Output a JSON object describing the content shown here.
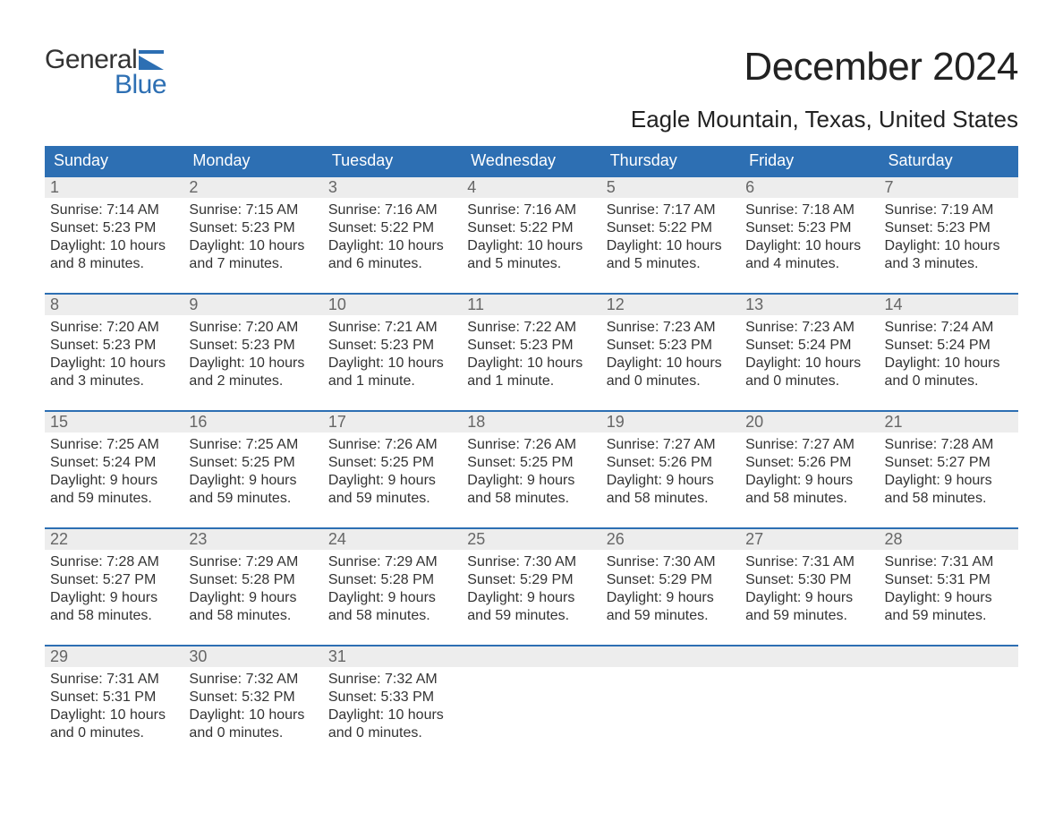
{
  "logo": {
    "top": "General",
    "bottom": "Blue",
    "icon_color": "#2d6fb3"
  },
  "header": {
    "month_title": "December 2024",
    "location": "Eagle Mountain, Texas, United States"
  },
  "calendar": {
    "header_bg": "#2d6fb3",
    "header_fg": "#ffffff",
    "week_border_color": "#2d6fb3",
    "daynum_bg": "#ededed",
    "daynum_fg": "#666666",
    "body_fg": "#333333",
    "background": "#ffffff",
    "font_family": "Arial",
    "day_names": [
      "Sunday",
      "Monday",
      "Tuesday",
      "Wednesday",
      "Thursday",
      "Friday",
      "Saturday"
    ],
    "weeks": [
      [
        {
          "n": "1",
          "sr": "Sunrise: 7:14 AM",
          "ss": "Sunset: 5:23 PM",
          "d1": "Daylight: 10 hours",
          "d2": "and 8 minutes."
        },
        {
          "n": "2",
          "sr": "Sunrise: 7:15 AM",
          "ss": "Sunset: 5:23 PM",
          "d1": "Daylight: 10 hours",
          "d2": "and 7 minutes."
        },
        {
          "n": "3",
          "sr": "Sunrise: 7:16 AM",
          "ss": "Sunset: 5:22 PM",
          "d1": "Daylight: 10 hours",
          "d2": "and 6 minutes."
        },
        {
          "n": "4",
          "sr": "Sunrise: 7:16 AM",
          "ss": "Sunset: 5:22 PM",
          "d1": "Daylight: 10 hours",
          "d2": "and 5 minutes."
        },
        {
          "n": "5",
          "sr": "Sunrise: 7:17 AM",
          "ss": "Sunset: 5:22 PM",
          "d1": "Daylight: 10 hours",
          "d2": "and 5 minutes."
        },
        {
          "n": "6",
          "sr": "Sunrise: 7:18 AM",
          "ss": "Sunset: 5:23 PM",
          "d1": "Daylight: 10 hours",
          "d2": "and 4 minutes."
        },
        {
          "n": "7",
          "sr": "Sunrise: 7:19 AM",
          "ss": "Sunset: 5:23 PM",
          "d1": "Daylight: 10 hours",
          "d2": "and 3 minutes."
        }
      ],
      [
        {
          "n": "8",
          "sr": "Sunrise: 7:20 AM",
          "ss": "Sunset: 5:23 PM",
          "d1": "Daylight: 10 hours",
          "d2": "and 3 minutes."
        },
        {
          "n": "9",
          "sr": "Sunrise: 7:20 AM",
          "ss": "Sunset: 5:23 PM",
          "d1": "Daylight: 10 hours",
          "d2": "and 2 minutes."
        },
        {
          "n": "10",
          "sr": "Sunrise: 7:21 AM",
          "ss": "Sunset: 5:23 PM",
          "d1": "Daylight: 10 hours",
          "d2": "and 1 minute."
        },
        {
          "n": "11",
          "sr": "Sunrise: 7:22 AM",
          "ss": "Sunset: 5:23 PM",
          "d1": "Daylight: 10 hours",
          "d2": "and 1 minute."
        },
        {
          "n": "12",
          "sr": "Sunrise: 7:23 AM",
          "ss": "Sunset: 5:23 PM",
          "d1": "Daylight: 10 hours",
          "d2": "and 0 minutes."
        },
        {
          "n": "13",
          "sr": "Sunrise: 7:23 AM",
          "ss": "Sunset: 5:24 PM",
          "d1": "Daylight: 10 hours",
          "d2": "and 0 minutes."
        },
        {
          "n": "14",
          "sr": "Sunrise: 7:24 AM",
          "ss": "Sunset: 5:24 PM",
          "d1": "Daylight: 10 hours",
          "d2": "and 0 minutes."
        }
      ],
      [
        {
          "n": "15",
          "sr": "Sunrise: 7:25 AM",
          "ss": "Sunset: 5:24 PM",
          "d1": "Daylight: 9 hours",
          "d2": "and 59 minutes."
        },
        {
          "n": "16",
          "sr": "Sunrise: 7:25 AM",
          "ss": "Sunset: 5:25 PM",
          "d1": "Daylight: 9 hours",
          "d2": "and 59 minutes."
        },
        {
          "n": "17",
          "sr": "Sunrise: 7:26 AM",
          "ss": "Sunset: 5:25 PM",
          "d1": "Daylight: 9 hours",
          "d2": "and 59 minutes."
        },
        {
          "n": "18",
          "sr": "Sunrise: 7:26 AM",
          "ss": "Sunset: 5:25 PM",
          "d1": "Daylight: 9 hours",
          "d2": "and 58 minutes."
        },
        {
          "n": "19",
          "sr": "Sunrise: 7:27 AM",
          "ss": "Sunset: 5:26 PM",
          "d1": "Daylight: 9 hours",
          "d2": "and 58 minutes."
        },
        {
          "n": "20",
          "sr": "Sunrise: 7:27 AM",
          "ss": "Sunset: 5:26 PM",
          "d1": "Daylight: 9 hours",
          "d2": "and 58 minutes."
        },
        {
          "n": "21",
          "sr": "Sunrise: 7:28 AM",
          "ss": "Sunset: 5:27 PM",
          "d1": "Daylight: 9 hours",
          "d2": "and 58 minutes."
        }
      ],
      [
        {
          "n": "22",
          "sr": "Sunrise: 7:28 AM",
          "ss": "Sunset: 5:27 PM",
          "d1": "Daylight: 9 hours",
          "d2": "and 58 minutes."
        },
        {
          "n": "23",
          "sr": "Sunrise: 7:29 AM",
          "ss": "Sunset: 5:28 PM",
          "d1": "Daylight: 9 hours",
          "d2": "and 58 minutes."
        },
        {
          "n": "24",
          "sr": "Sunrise: 7:29 AM",
          "ss": "Sunset: 5:28 PM",
          "d1": "Daylight: 9 hours",
          "d2": "and 58 minutes."
        },
        {
          "n": "25",
          "sr": "Sunrise: 7:30 AM",
          "ss": "Sunset: 5:29 PM",
          "d1": "Daylight: 9 hours",
          "d2": "and 59 minutes."
        },
        {
          "n": "26",
          "sr": "Sunrise: 7:30 AM",
          "ss": "Sunset: 5:29 PM",
          "d1": "Daylight: 9 hours",
          "d2": "and 59 minutes."
        },
        {
          "n": "27",
          "sr": "Sunrise: 7:31 AM",
          "ss": "Sunset: 5:30 PM",
          "d1": "Daylight: 9 hours",
          "d2": "and 59 minutes."
        },
        {
          "n": "28",
          "sr": "Sunrise: 7:31 AM",
          "ss": "Sunset: 5:31 PM",
          "d1": "Daylight: 9 hours",
          "d2": "and 59 minutes."
        }
      ],
      [
        {
          "n": "29",
          "sr": "Sunrise: 7:31 AM",
          "ss": "Sunset: 5:31 PM",
          "d1": "Daylight: 10 hours",
          "d2": "and 0 minutes."
        },
        {
          "n": "30",
          "sr": "Sunrise: 7:32 AM",
          "ss": "Sunset: 5:32 PM",
          "d1": "Daylight: 10 hours",
          "d2": "and 0 minutes."
        },
        {
          "n": "31",
          "sr": "Sunrise: 7:32 AM",
          "ss": "Sunset: 5:33 PM",
          "d1": "Daylight: 10 hours",
          "d2": "and 0 minutes."
        },
        {
          "empty": true
        },
        {
          "empty": true
        },
        {
          "empty": true
        },
        {
          "empty": true
        }
      ]
    ]
  }
}
